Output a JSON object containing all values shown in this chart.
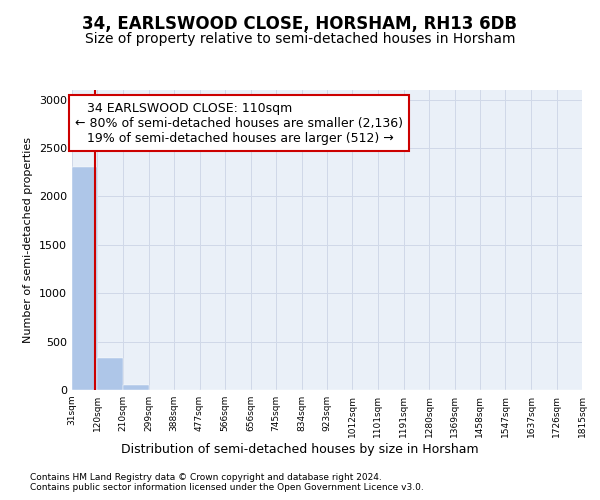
{
  "title": "34, EARLSWOOD CLOSE, HORSHAM, RH13 6DB",
  "subtitle": "Size of property relative to semi-detached houses in Horsham",
  "xlabel_dist": "Distribution of semi-detached houses by size in Horsham",
  "ylabel": "Number of semi-detached properties",
  "footer_line1": "Contains HM Land Registry data © Crown copyright and database right 2024.",
  "footer_line2": "Contains public sector information licensed under the Open Government Licence v3.0.",
  "bin_edges": [
    31,
    120,
    210,
    299,
    388,
    477,
    566,
    656,
    745,
    834,
    923,
    1012,
    1101,
    1191,
    1280,
    1369,
    1458,
    1547,
    1637,
    1726,
    1815
  ],
  "bar_heights": [
    2300,
    330,
    50,
    5,
    2,
    1,
    0,
    0,
    0,
    0,
    0,
    0,
    0,
    0,
    0,
    0,
    0,
    0,
    0,
    0
  ],
  "bar_color": "#aec6e8",
  "bar_edgecolor": "#aec6e8",
  "property_size": 110,
  "property_label": "34 EARLSWOOD CLOSE: 110sqm",
  "pct_smaller": 80,
  "n_smaller": 2136,
  "pct_larger": 19,
  "n_larger": 512,
  "vline_color": "#cc0000",
  "annotation_box_color": "#cc0000",
  "ylim": [
    0,
    3100
  ],
  "yticks": [
    0,
    500,
    1000,
    1500,
    2000,
    2500,
    3000
  ],
  "tick_labels": [
    "31sqm",
    "120sqm",
    "210sqm",
    "299sqm",
    "388sqm",
    "477sqm",
    "566sqm",
    "656sqm",
    "745sqm",
    "834sqm",
    "923sqm",
    "1012sqm",
    "1101sqm",
    "1191sqm",
    "1280sqm",
    "1369sqm",
    "1458sqm",
    "1547sqm",
    "1637sqm",
    "1726sqm",
    "1815sqm"
  ],
  "grid_color": "#d0d8e8",
  "bg_color": "#eaf0f8",
  "title_fontsize": 12,
  "subtitle_fontsize": 10,
  "ann_fontsize": 9
}
